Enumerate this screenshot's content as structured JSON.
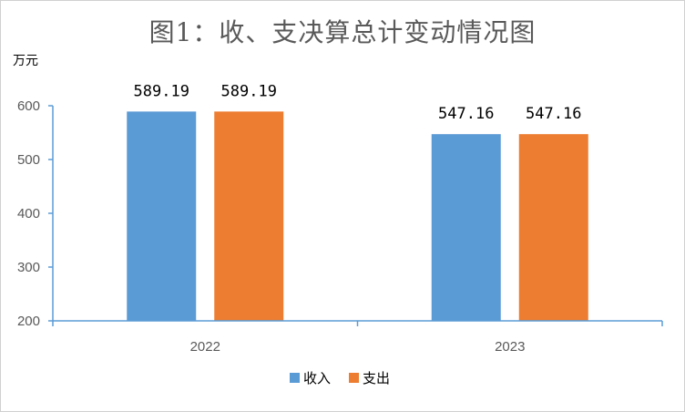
{
  "chart_data": {
    "type": "bar",
    "title": "图1：收、支决算总计变动情况图",
    "unit_label": "万元",
    "categories": [
      "2022",
      "2023"
    ],
    "series": [
      {
        "name": "收入",
        "values": [
          589.19,
          547.16
        ],
        "data_labels": [
          "589.19",
          "547.16"
        ],
        "color": "#5b9bd5"
      },
      {
        "name": "支出",
        "values": [
          589.19,
          547.16
        ],
        "data_labels": [
          "589.19",
          "547.16"
        ],
        "color": "#ed7d31"
      }
    ],
    "ylim": [
      200,
      600
    ],
    "yticks": [
      "200",
      "300",
      "400",
      "500",
      "600"
    ],
    "grid": false,
    "legend_position": "bottom"
  }
}
